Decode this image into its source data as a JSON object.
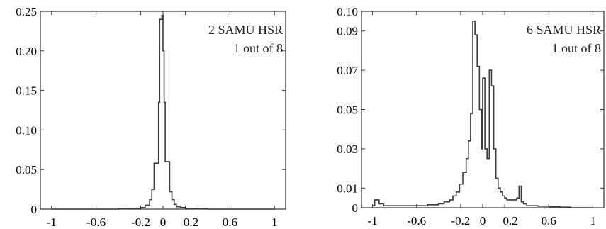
{
  "chart_data": [
    {
      "type": "line",
      "step": true,
      "annotation": [
        "2 SAMU HSR",
        "1 out of 8"
      ],
      "xlim": [
        -1.1,
        1.1
      ],
      "ylim": [
        0,
        0.25
      ],
      "xticks": [
        -1,
        -0.6,
        -0.2,
        0,
        0.2,
        0.6,
        1
      ],
      "xtick_labels": [
        "-1",
        "-0.6",
        "-0.2",
        "0",
        "0.2",
        "0.6",
        "1"
      ],
      "yticks": [
        0,
        0.05,
        0.1,
        0.15,
        0.2,
        0.25
      ],
      "ytick_labels": [
        "0",
        "0.05",
        "0.10",
        "0.15",
        "0.20",
        "0.25"
      ],
      "grid": false,
      "x": [
        -1.0,
        -0.9,
        -0.8,
        -0.7,
        -0.6,
        -0.5,
        -0.4,
        -0.3,
        -0.25,
        -0.2,
        -0.16,
        -0.12,
        -0.1,
        -0.08,
        -0.06,
        -0.04,
        -0.03,
        -0.02,
        -0.01,
        0.0,
        0.01,
        0.02,
        0.04,
        0.06,
        0.08,
        0.1,
        0.12,
        0.16,
        0.2,
        0.25,
        0.3,
        0.4,
        0.5,
        0.6,
        0.8,
        1.0
      ],
      "values": [
        0.0,
        0.0,
        0.0,
        0.0,
        0.0,
        0.0,
        0.0005,
        0.001,
        0.001,
        0.002,
        0.005,
        0.012,
        0.025,
        0.058,
        0.058,
        0.135,
        0.24,
        0.24,
        0.245,
        0.2,
        0.135,
        0.06,
        0.06,
        0.022,
        0.012,
        0.006,
        0.003,
        0.002,
        0.001,
        0.001,
        0.0005,
        0.0,
        0.0,
        0.0,
        0.0,
        0.0
      ]
    },
    {
      "type": "line",
      "step": true,
      "annotation": [
        "6 SAMU HSR",
        "1 out of 8"
      ],
      "xlim": [
        -1.1,
        1.1
      ],
      "ylim": [
        0,
        0.1
      ],
      "xticks": [
        -1,
        -0.6,
        -0.2,
        0,
        0.2,
        0.6,
        1
      ],
      "xtick_labels": [
        "-1",
        "-0.6",
        "-0.2",
        "0",
        "0.2",
        "0.6",
        "1"
      ],
      "yticks": [
        0,
        0.01,
        0.03,
        0.05,
        0.07,
        0.09,
        0.1
      ],
      "ytick_labels": [
        "0",
        "0.01",
        "0.03",
        "0.05",
        "0.07",
        "0.09",
        "0.10"
      ],
      "grid": false,
      "x": [
        -1.0,
        -0.98,
        -0.94,
        -0.9,
        -0.8,
        -0.7,
        -0.6,
        -0.5,
        -0.4,
        -0.35,
        -0.3,
        -0.27,
        -0.24,
        -0.21,
        -0.18,
        -0.15,
        -0.13,
        -0.11,
        -0.09,
        -0.07,
        -0.05,
        -0.03,
        -0.01,
        0.0,
        0.02,
        0.04,
        0.06,
        0.08,
        0.1,
        0.12,
        0.14,
        0.16,
        0.18,
        0.2,
        0.22,
        0.25,
        0.28,
        0.31,
        0.33,
        0.35,
        0.37,
        0.4,
        0.45,
        0.5,
        0.6,
        0.7,
        0.8,
        1.0
      ],
      "values": [
        0.001,
        0.004,
        0.002,
        0.001,
        0.001,
        0.001,
        0.001,
        0.0015,
        0.002,
        0.003,
        0.004,
        0.006,
        0.008,
        0.012,
        0.018,
        0.025,
        0.034,
        0.048,
        0.095,
        0.088,
        0.072,
        0.05,
        0.03,
        0.066,
        0.03,
        0.025,
        0.07,
        0.062,
        0.03,
        0.015,
        0.01,
        0.008,
        0.006,
        0.005,
        0.004,
        0.004,
        0.004,
        0.005,
        0.011,
        0.003,
        0.002,
        0.001,
        0.001,
        0.0008,
        0.0005,
        0.0003,
        0.0,
        0.0
      ]
    }
  ]
}
